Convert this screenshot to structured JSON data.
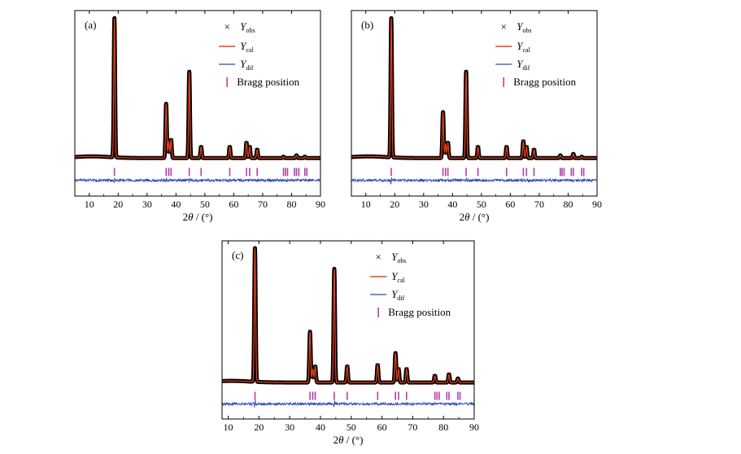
{
  "colors": {
    "obs": "#000000",
    "cal": "#e8401c",
    "dif": "#2b49b5",
    "bragg": "#b03fa8",
    "axis": "#000000"
  },
  "legend": {
    "obs_symbol": "×",
    "obs_main": "Y",
    "obs_sub": "obs",
    "cal_main": "Y",
    "cal_sub": "cal",
    "dif_main": "Y",
    "dif_sub": "dif",
    "bragg": "Bragg position"
  },
  "chart_data": [
    {
      "type": "line",
      "panel_label": "(a)",
      "xlabel": "2θ / (°)",
      "ylabel": "",
      "xlim": [
        5,
        90
      ],
      "xticks": [
        10,
        20,
        30,
        40,
        50,
        60,
        70,
        80,
        90
      ],
      "yticks_visible": false,
      "legend_position": "top-right",
      "background_level": 0.1,
      "series": [
        {
          "name": "Yobs",
          "style": "markers"
        },
        {
          "name": "Ycal",
          "style": "line"
        },
        {
          "name": "Ydif",
          "style": "line"
        }
      ],
      "peaks": [
        {
          "x": 18.7,
          "y": 1.0
        },
        {
          "x": 36.6,
          "y": 0.39
        },
        {
          "x": 37.5,
          "y": 0.12
        },
        {
          "x": 38.3,
          "y": 0.13
        },
        {
          "x": 44.6,
          "y": 0.62
        },
        {
          "x": 48.7,
          "y": 0.08
        },
        {
          "x": 58.6,
          "y": 0.08
        },
        {
          "x": 64.4,
          "y": 0.11
        },
        {
          "x": 65.5,
          "y": 0.08
        },
        {
          "x": 68.1,
          "y": 0.06
        },
        {
          "x": 77.2,
          "y": 0.01
        },
        {
          "x": 81.7,
          "y": 0.02
        },
        {
          "x": 84.6,
          "y": 0.01
        }
      ],
      "bragg_positions": [
        18.7,
        36.6,
        37.5,
        38.3,
        44.6,
        48.7,
        58.6,
        64.4,
        65.5,
        68.1,
        77.2,
        77.9,
        78.6,
        81.0,
        81.7,
        82.5,
        84.6,
        85.3
      ]
    },
    {
      "type": "line",
      "panel_label": "(b)",
      "xlabel": "2θ / (°)",
      "ylabel": "",
      "xlim": [
        5,
        90
      ],
      "xticks": [
        10,
        20,
        30,
        40,
        50,
        60,
        70,
        80,
        90
      ],
      "yticks_visible": false,
      "legend_position": "top-right",
      "background_level": 0.08,
      "series": [
        {
          "name": "Yobs",
          "style": "markers"
        },
        {
          "name": "Ycal",
          "style": "line"
        },
        {
          "name": "Ydif",
          "style": "line"
        }
      ],
      "peaks": [
        {
          "x": 18.8,
          "y": 1.0
        },
        {
          "x": 36.7,
          "y": 0.33
        },
        {
          "x": 37.6,
          "y": 0.1
        },
        {
          "x": 38.4,
          "y": 0.11
        },
        {
          "x": 44.7,
          "y": 0.62
        },
        {
          "x": 48.8,
          "y": 0.08
        },
        {
          "x": 58.7,
          "y": 0.08
        },
        {
          "x": 64.5,
          "y": 0.12
        },
        {
          "x": 65.6,
          "y": 0.08
        },
        {
          "x": 68.2,
          "y": 0.06
        },
        {
          "x": 77.3,
          "y": 0.02
        },
        {
          "x": 81.8,
          "y": 0.03
        },
        {
          "x": 84.7,
          "y": 0.01
        }
      ],
      "bragg_positions": [
        18.8,
        36.7,
        37.6,
        38.4,
        44.7,
        48.8,
        58.7,
        64.5,
        65.6,
        68.2,
        77.3,
        77.9,
        78.6,
        81.1,
        81.8,
        84.7,
        85.4
      ]
    },
    {
      "type": "line",
      "panel_label": "(c)",
      "xlabel": "2θ / (°)",
      "ylabel": "",
      "xlim": [
        8,
        90
      ],
      "xticks": [
        10,
        20,
        30,
        40,
        50,
        60,
        70,
        80,
        90
      ],
      "yticks_visible": false,
      "legend_position": "top-right",
      "background_level": 0.05,
      "series": [
        {
          "name": "Yobs",
          "style": "markers"
        },
        {
          "name": "Ycal",
          "style": "line"
        },
        {
          "name": "Ydif",
          "style": "line"
        }
      ],
      "peaks": [
        {
          "x": 18.7,
          "y": 1.0
        },
        {
          "x": 36.6,
          "y": 0.38
        },
        {
          "x": 37.5,
          "y": 0.1
        },
        {
          "x": 38.3,
          "y": 0.12
        },
        {
          "x": 44.5,
          "y": 0.85
        },
        {
          "x": 48.7,
          "y": 0.12
        },
        {
          "x": 58.6,
          "y": 0.13
        },
        {
          "x": 64.4,
          "y": 0.22
        },
        {
          "x": 65.4,
          "y": 0.1
        },
        {
          "x": 68.0,
          "y": 0.1
        },
        {
          "x": 77.2,
          "y": 0.05
        },
        {
          "x": 81.8,
          "y": 0.06
        },
        {
          "x": 84.7,
          "y": 0.03
        }
      ],
      "bragg_positions": [
        18.7,
        36.6,
        37.5,
        38.3,
        44.5,
        48.7,
        58.6,
        64.4,
        65.4,
        68.0,
        77.2,
        77.9,
        78.6,
        81.1,
        81.8,
        84.7,
        85.4
      ]
    }
  ]
}
